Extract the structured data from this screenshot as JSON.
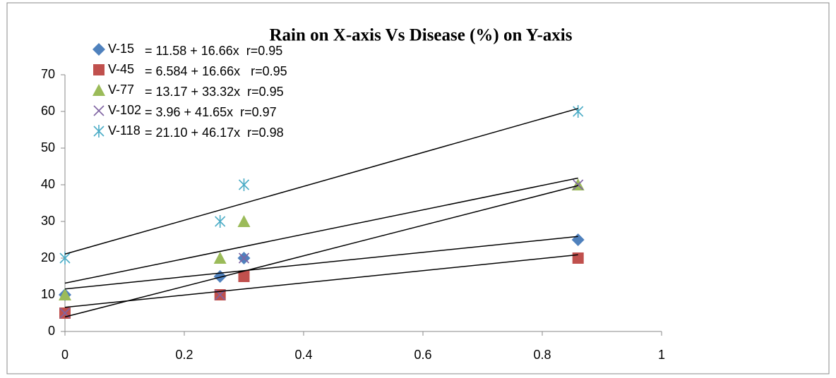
{
  "chart_data": {
    "type": "scatter",
    "title": "Rain on X-axis Vs Disease (%) on Y-axis",
    "x": [
      0,
      0.26,
      0.3,
      0.86
    ],
    "xlim": [
      0,
      1
    ],
    "xticks": [
      0,
      0.2,
      0.4,
      0.6,
      0.8,
      1
    ],
    "ylim": [
      0,
      70
    ],
    "yticks": [
      0,
      10,
      20,
      30,
      40,
      50,
      60,
      70
    ],
    "grid": false,
    "legend": "top-left",
    "series": [
      {
        "name": "V-15",
        "color": "#4f81bd",
        "marker": "diamond",
        "values": [
          10,
          15,
          20,
          25
        ],
        "equation": "= 11.58 + 16.66x  r=0.95",
        "trend": {
          "intercept": 11.58,
          "slope": 16.66
        }
      },
      {
        "name": "V-45",
        "color": "#c0504d",
        "marker": "square",
        "values": [
          5,
          10,
          15,
          20
        ],
        "equation": "= 6.584 + 16.66x   r=0.95",
        "trend": {
          "intercept": 6.584,
          "slope": 16.66
        }
      },
      {
        "name": "V-77",
        "color": "#9bbb59",
        "marker": "triangle",
        "values": [
          10,
          20,
          30,
          40
        ],
        "equation": "= 13.17 + 33.32x  r=0.95",
        "trend": {
          "intercept": 13.17,
          "slope": 33.32
        }
      },
      {
        "name": "V-102",
        "color": "#8064a2",
        "marker": "x",
        "values": [
          5,
          10,
          20,
          40
        ],
        "equation": "= 3.96 + 41.65x  r=0.97",
        "trend": {
          "intercept": 3.96,
          "slope": 41.65
        }
      },
      {
        "name": "V-118",
        "color": "#4bacc6",
        "marker": "star",
        "values": [
          20,
          30,
          40,
          60
        ],
        "equation": "= 21.10 + 46.17x  r=0.98",
        "trend": {
          "intercept": 21.1,
          "slope": 46.17
        }
      }
    ]
  }
}
